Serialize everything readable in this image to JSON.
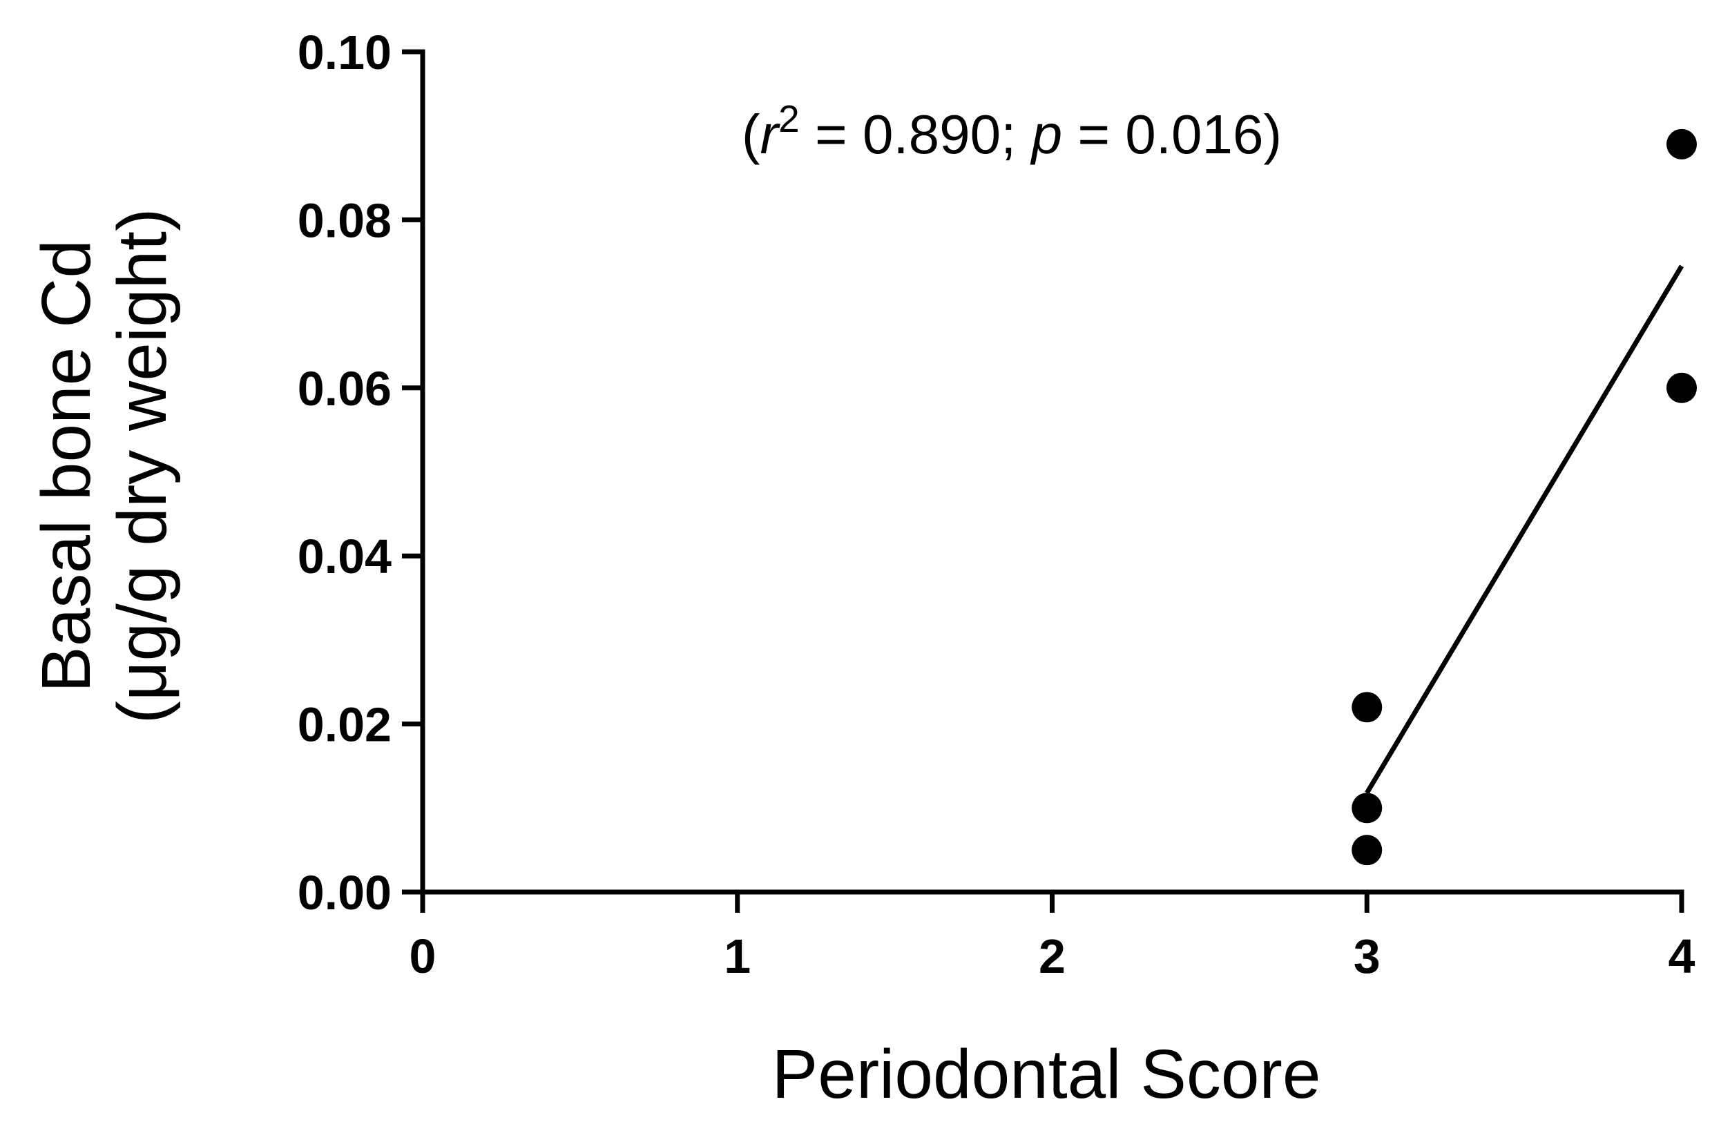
{
  "chart_data": {
    "type": "scatter",
    "title": "",
    "xlabel": "Periodontal Score",
    "ylabel_line1": "Basal bone Cd",
    "ylabel_line2": "(μg/g dry weight)",
    "annotation": {
      "open": "(",
      "r": "r",
      "sup": "2",
      "mid": " = 0.890; ",
      "p": "p",
      "end": " = 0.016)"
    },
    "xlim": [
      0,
      4
    ],
    "ylim": [
      0,
      0.1
    ],
    "x_ticks": [
      0,
      1,
      2,
      3,
      4
    ],
    "x_tick_labels": [
      "0",
      "1",
      "2",
      "3",
      "4"
    ],
    "y_ticks": [
      0,
      0.02,
      0.04,
      0.06,
      0.08,
      0.1
    ],
    "y_tick_labels": [
      "0.00",
      "0.02",
      "0.04",
      "0.06",
      "0.08",
      "0.10"
    ],
    "points": [
      {
        "x": 3,
        "y": 0.022
      },
      {
        "x": 3,
        "y": 0.01
      },
      {
        "x": 3,
        "y": 0.005
      },
      {
        "x": 4,
        "y": 0.089
      },
      {
        "x": 4,
        "y": 0.06
      }
    ],
    "fit_line": {
      "x": [
        3,
        4
      ],
      "y": [
        0.0118,
        0.0745
      ]
    },
    "grid": false,
    "legend": "none",
    "colors": {
      "marker": "#000000",
      "line": "#000000",
      "axis": "#000000"
    }
  }
}
